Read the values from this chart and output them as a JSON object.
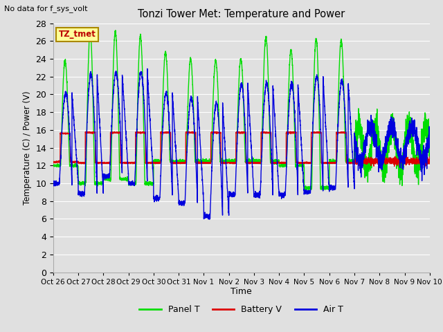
{
  "title": "Tonzi Tower Met: Temperature and Power",
  "subtitle": "No data for f_sys_volt",
  "xlabel": "Time",
  "ylabel": "Temperature (C) / Power (V)",
  "ylim": [
    0,
    28
  ],
  "yticks": [
    0,
    2,
    4,
    6,
    8,
    10,
    12,
    14,
    16,
    18,
    20,
    22,
    24,
    26,
    28
  ],
  "background_color": "#e0e0e0",
  "plot_bg_color": "#e0e0e0",
  "grid_color": "#ffffff",
  "legend_labels": [
    "Panel T",
    "Battery V",
    "Air T"
  ],
  "legend_colors": [
    "#00dd00",
    "#dd0000",
    "#0000dd"
  ],
  "annotation_text": "TZ_tmet",
  "annotation_color": "#bb0000",
  "annotation_bg": "#ffff99",
  "annotation_border": "#aa8800",
  "tick_labels": [
    "Oct 26",
    "Oct 27",
    "Oct 28",
    "Oct 29",
    "Oct 30",
    "Oct 31",
    "Nov 1",
    "Nov 2",
    "Nov 3",
    "Nov 4",
    "Nov 5",
    "Nov 6",
    "Nov 7",
    "Nov 8",
    "Nov 9",
    "Nov 10"
  ],
  "n_days": 15,
  "panel_peaks": [
    23.8,
    27.0,
    27.1,
    26.6,
    24.7,
    24.0,
    23.8,
    24.0,
    26.4,
    25.0,
    26.3,
    26.1,
    25.0,
    20.0,
    18.5
  ],
  "panel_troughs": [
    12.0,
    10.0,
    10.5,
    10.0,
    12.5,
    12.5,
    12.5,
    12.5,
    12.5,
    12.0,
    9.5,
    12.5,
    12.5,
    12.5,
    14.0
  ],
  "air_peaks": [
    20.1,
    22.2,
    22.4,
    22.5,
    20.2,
    19.6,
    19.0,
    21.2,
    21.2,
    21.2,
    22.0,
    21.5,
    21.8,
    17.8,
    17.5
  ],
  "air_troughs": [
    10.0,
    8.8,
    10.8,
    10.0,
    8.3,
    7.8,
    6.3,
    8.7,
    8.7,
    8.7,
    9.0,
    9.5,
    10.0,
    10.5,
    13.0
  ],
  "battery_highs": [
    15.6,
    15.7,
    15.7,
    15.7,
    15.7,
    15.7,
    15.7,
    15.7,
    15.7,
    15.7,
    15.7,
    15.7,
    15.5,
    12.9,
    12.8
  ],
  "battery_lows": [
    12.4,
    12.3,
    12.3,
    12.3,
    12.3,
    12.3,
    12.3,
    12.3,
    12.3,
    12.3,
    12.3,
    12.3,
    12.1,
    12.0,
    12.0
  ]
}
